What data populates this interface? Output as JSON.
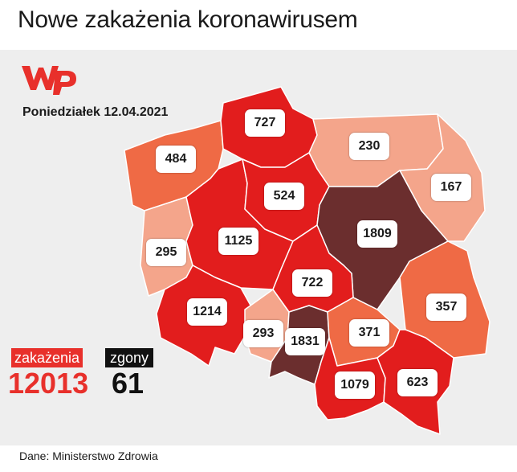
{
  "title": "Nowe zakażenia koronawirusem",
  "date_label": "Poniedziałek 12.04.2021",
  "logo": "wp-logo",
  "colors": {
    "very_high": "#6b2e2e",
    "high": "#e21d1d",
    "medium": "#ef6a45",
    "low": "#f4a58b",
    "accent": "#e8302b",
    "background_panel": "#eeeeee"
  },
  "regions": [
    {
      "name": "zachodniopomorskie",
      "cases": "484",
      "level": "medium"
    },
    {
      "name": "pomorskie",
      "cases": "727",
      "level": "high"
    },
    {
      "name": "warmińsko-mazurskie",
      "cases": "230",
      "level": "low"
    },
    {
      "name": "podlaskie",
      "cases": "167",
      "level": "low"
    },
    {
      "name": "lubuskie",
      "cases": "295",
      "level": "low"
    },
    {
      "name": "wielkopolskie",
      "cases": "1125",
      "level": "high"
    },
    {
      "name": "kujawsko-pomorskie",
      "cases": "524",
      "level": "high"
    },
    {
      "name": "mazowieckie",
      "cases": "1809",
      "level": "very_high"
    },
    {
      "name": "łódzkie",
      "cases": "722",
      "level": "high"
    },
    {
      "name": "lubelskie",
      "cases": "357",
      "level": "medium"
    },
    {
      "name": "dolnośląskie",
      "cases": "1214",
      "level": "high"
    },
    {
      "name": "opolskie",
      "cases": "293",
      "level": "low"
    },
    {
      "name": "śląskie",
      "cases": "1831",
      "level": "very_high"
    },
    {
      "name": "świętokrzyskie",
      "cases": "371",
      "level": "medium"
    },
    {
      "name": "małopolskie",
      "cases": "1079",
      "level": "high"
    },
    {
      "name": "podkarpackie",
      "cases": "623",
      "level": "high"
    }
  ],
  "totals": {
    "cases_label": "zakażenia",
    "cases_value": "12013",
    "deaths_label": "zgony",
    "deaths_value": "61"
  },
  "source": "Dane: Ministerstwo Zdrowia"
}
